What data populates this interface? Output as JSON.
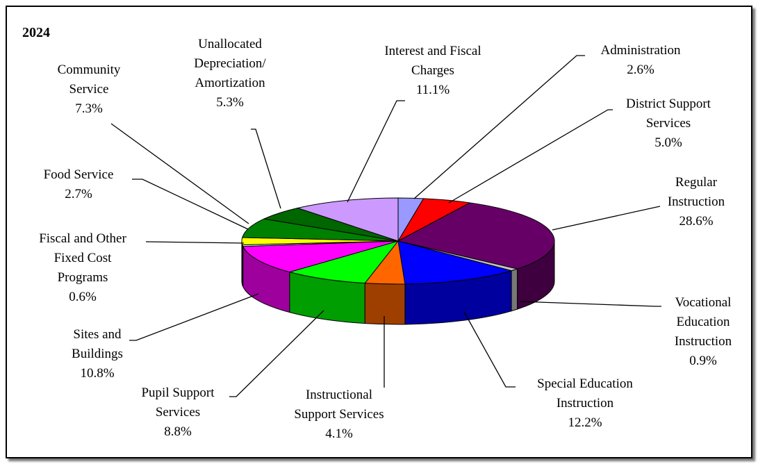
{
  "chart_data": {
    "type": "pie",
    "title": "2024",
    "categories": [
      "Administration",
      "District Support Services",
      "Regular Instruction",
      "Vocational Education Instruction",
      "Special Education Instruction",
      "Instructional Support Services",
      "Pupil Support Services",
      "Sites and Buildings",
      "Fiscal and Other Fixed Cost Programs",
      "Food Service",
      "Community Service",
      "Unallocated Depreciation/ Amortization",
      "Interest and Fiscal Charges"
    ],
    "values": [
      2.6,
      5.0,
      28.6,
      0.9,
      12.2,
      4.1,
      8.8,
      10.8,
      0.6,
      2.7,
      7.3,
      5.3,
      11.1
    ],
    "value_labels": [
      "2.6%",
      "5.0%",
      "28.6%",
      "0.9%",
      "12.2%",
      "4.1%",
      "8.8%",
      "10.8%",
      "0.6%",
      "2.7%",
      "7.3%",
      "5.3%",
      "11.1%"
    ],
    "label_lines": [
      [
        "Administration",
        "2.6%"
      ],
      [
        "District Support",
        "Services",
        "5.0%"
      ],
      [
        "Regular",
        "Instruction",
        "28.6%"
      ],
      [
        "Vocational",
        "Education",
        "Instruction",
        "0.9%"
      ],
      [
        "Special Education",
        "Instruction",
        "12.2%"
      ],
      [
        "Instructional",
        "Support Services",
        "4.1%"
      ],
      [
        "Pupil Support",
        "Services",
        "8.8%"
      ],
      [
        "Sites and",
        "Buildings",
        "10.8%"
      ],
      [
        "Fiscal and Other",
        "Fixed Cost",
        "Programs",
        "0.6%"
      ],
      [
        "Food Service",
        "2.7%"
      ],
      [
        "Community",
        "Service",
        "7.3%"
      ],
      [
        "Unallocated",
        "Depreciation/",
        "Amortization",
        "5.3%"
      ],
      [
        "Interest and Fiscal",
        "Charges",
        "11.1%"
      ]
    ],
    "colors": [
      "#9999ff",
      "#ff0000",
      "#660066",
      "#c0c0c0",
      "#0000ff",
      "#ff6600",
      "#00ff00",
      "#ff00ff",
      "#ccffff",
      "#ffff00",
      "#008000",
      "#006600",
      "#cc99ff"
    ],
    "legend": "none",
    "style": "3d-pie"
  }
}
